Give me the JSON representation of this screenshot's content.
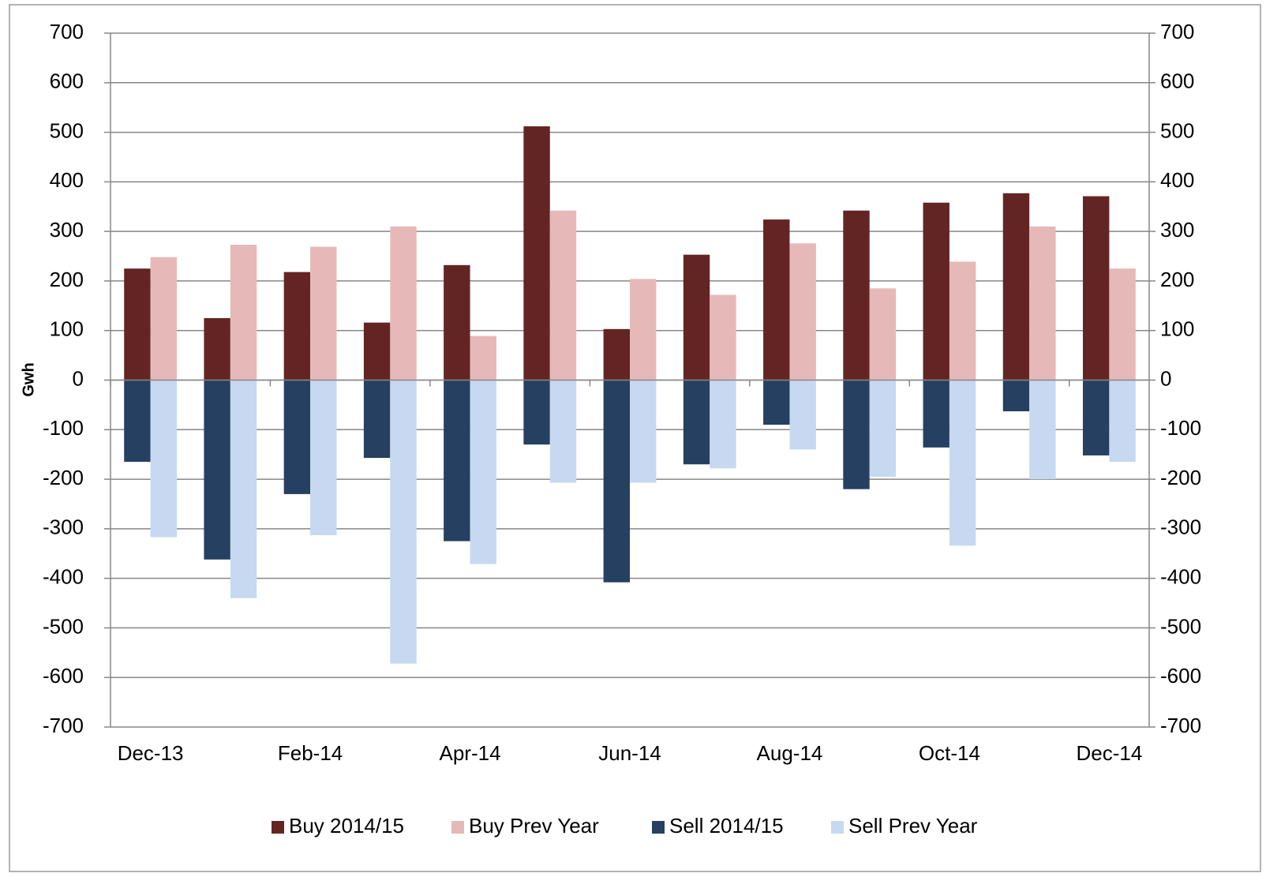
{
  "chart_data": {
    "type": "bar",
    "y_axis_label": "Gwh",
    "categories": [
      "Dec-13",
      null,
      "Feb-14",
      null,
      "Apr-14",
      null,
      "Jun-14",
      null,
      "Aug-14",
      null,
      "Oct-14",
      null,
      "Dec-14"
    ],
    "series": [
      {
        "name": "Buy 2014/15",
        "color": "#632523",
        "values": [
          225,
          125,
          218,
          116,
          232,
          512,
          103,
          253,
          324,
          342,
          358,
          377,
          371
        ]
      },
      {
        "name": "Buy Prev Year",
        "color": "#e6b9b8",
        "values": [
          248,
          273,
          269,
          310,
          89,
          342,
          204,
          172,
          276,
          185,
          239,
          310,
          225
        ]
      },
      {
        "name": "Sell 2014/15",
        "color": "#254061",
        "values": [
          -165,
          -362,
          -230,
          -157,
          -325,
          -130,
          -408,
          -170,
          -90,
          -220,
          -136,
          -63,
          -152
        ]
      },
      {
        "name": "Sell Prev Year",
        "color": "#c6d9f1",
        "values": [
          -317,
          -440,
          -313,
          -572,
          -371,
          -207,
          -207,
          -178,
          -140,
          -195,
          -334,
          -200,
          -165
        ]
      }
    ],
    "ylim": [
      -700,
      700
    ],
    "yticks": [
      -700,
      -600,
      -500,
      -400,
      -300,
      -200,
      -100,
      0,
      100,
      200,
      300,
      400,
      500,
      600,
      700
    ],
    "y2lim": [
      -700,
      700
    ],
    "y2ticks": [
      -700,
      -600,
      -500,
      -400,
      -300,
      -200,
      -100,
      0,
      100,
      200,
      300,
      400,
      500,
      600,
      700
    ],
    "negative_tick_color": "#ff0000",
    "grid": true,
    "legend": "bottom"
  }
}
